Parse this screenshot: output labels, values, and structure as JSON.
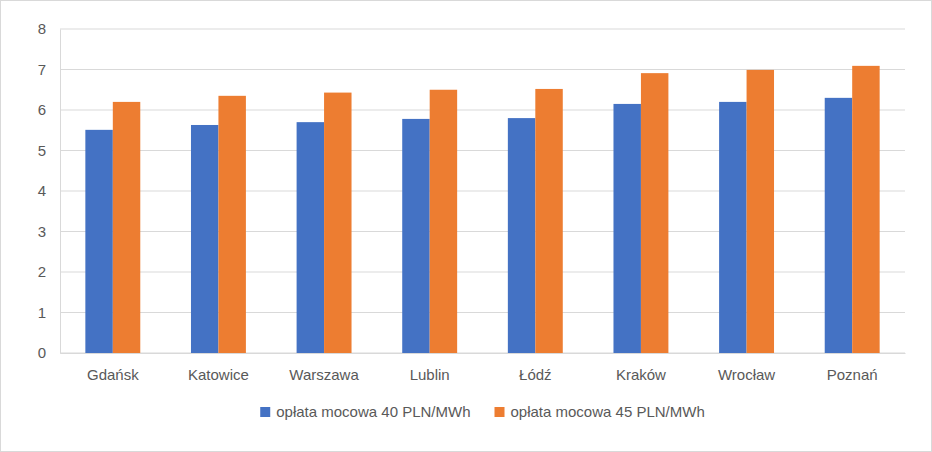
{
  "chart_data": {
    "type": "bar",
    "categories": [
      "Gdańsk",
      "Katowice",
      "Warszawa",
      "Lublin",
      "Łódź",
      "Kraków",
      "Wrocław",
      "Poznań"
    ],
    "series": [
      {
        "name": "opłata mocowa 40 PLN/MWh",
        "color": "#4472c4",
        "values": [
          5.51,
          5.63,
          5.7,
          5.78,
          5.8,
          6.15,
          6.2,
          6.3
        ]
      },
      {
        "name": "opłata mocowa 45 PLN/MWh",
        "color": "#ed7d31",
        "values": [
          6.2,
          6.35,
          6.43,
          6.5,
          6.52,
          6.91,
          6.99,
          7.09
        ]
      }
    ],
    "ylim": [
      0,
      8
    ],
    "yticks": [
      0,
      1,
      2,
      3,
      4,
      5,
      6,
      7,
      8
    ],
    "grid": true,
    "legend": "bottom"
  }
}
